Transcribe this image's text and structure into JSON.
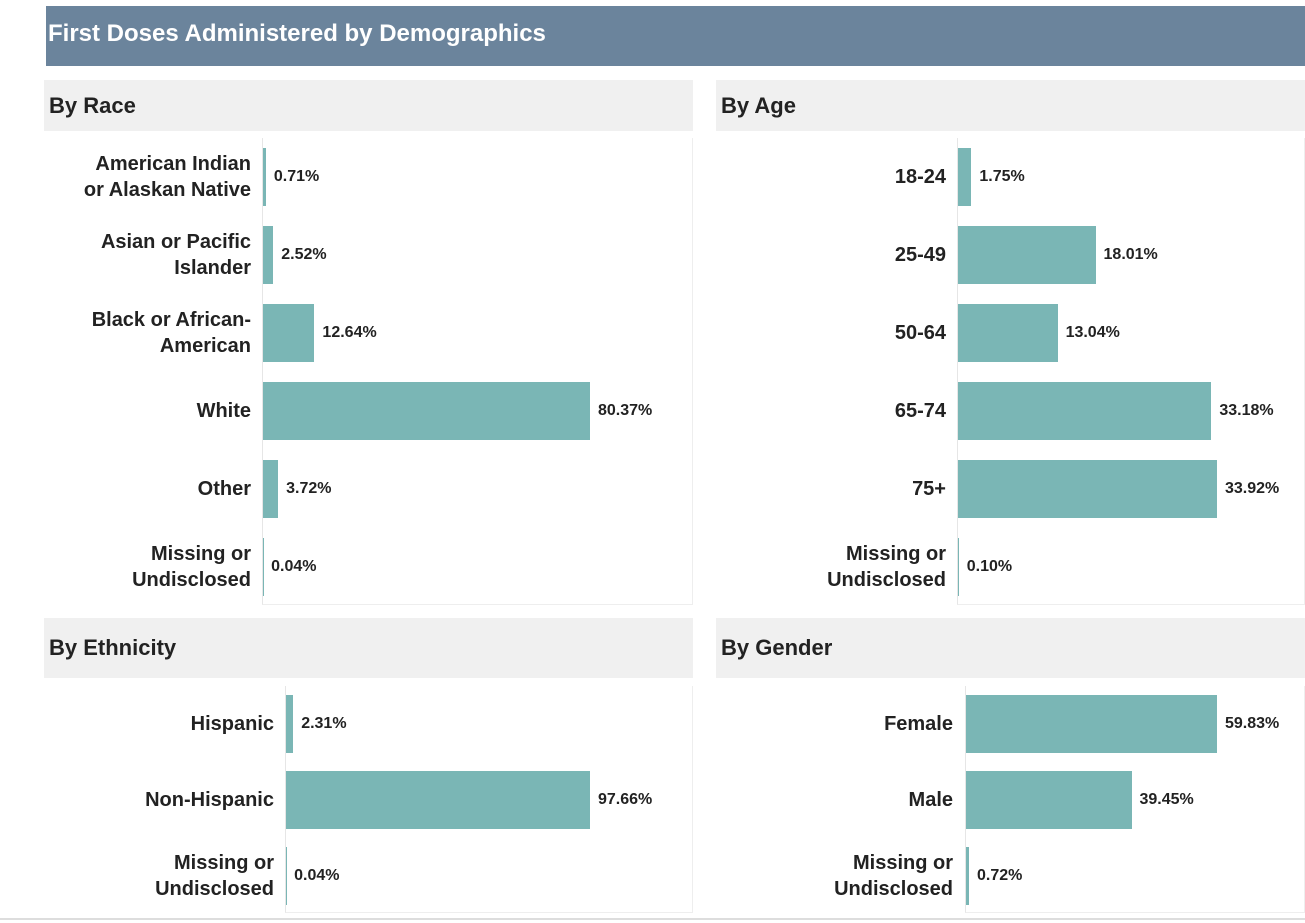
{
  "header": {
    "title": "First Doses Administered by Demographics"
  },
  "chart_data": [
    {
      "type": "bar",
      "title": "By Race",
      "color": "#7ab6b5",
      "categories": [
        "American Indian or Alaskan Native",
        "Asian or Pacific Islander",
        "Black or African-American",
        "White",
        "Other",
        "Missing or Undisclosed"
      ],
      "values": [
        0.71,
        2.52,
        12.64,
        80.37,
        3.72,
        0.04
      ],
      "value_labels": [
        "0.71%",
        "2.52%",
        "12.64%",
        "80.37%",
        "3.72%",
        "0.04%"
      ]
    },
    {
      "type": "bar",
      "title": "By Age",
      "color": "#7ab6b5",
      "categories": [
        "18-24",
        "25-49",
        "50-64",
        "65-74",
        "75+",
        "Missing or Undisclosed"
      ],
      "values": [
        1.75,
        18.01,
        13.04,
        33.18,
        33.92,
        0.1
      ],
      "value_labels": [
        "1.75%",
        "18.01%",
        "13.04%",
        "33.18%",
        "33.92%",
        "0.10%"
      ]
    },
    {
      "type": "bar",
      "title": "By Ethnicity",
      "color": "#7ab6b5",
      "categories": [
        "Hispanic",
        "Non-Hispanic",
        "Missing or Undisclosed"
      ],
      "values": [
        2.31,
        97.66,
        0.04
      ],
      "value_labels": [
        "2.31%",
        "97.66%",
        "0.04%"
      ]
    },
    {
      "type": "bar",
      "title": "By Gender",
      "color": "#7ab6b5",
      "categories": [
        "Female",
        "Male",
        "Missing or Undisclosed"
      ],
      "values": [
        59.83,
        39.45,
        0.72
      ],
      "value_labels": [
        "59.83%",
        "39.45%",
        "0.72%"
      ]
    }
  ]
}
